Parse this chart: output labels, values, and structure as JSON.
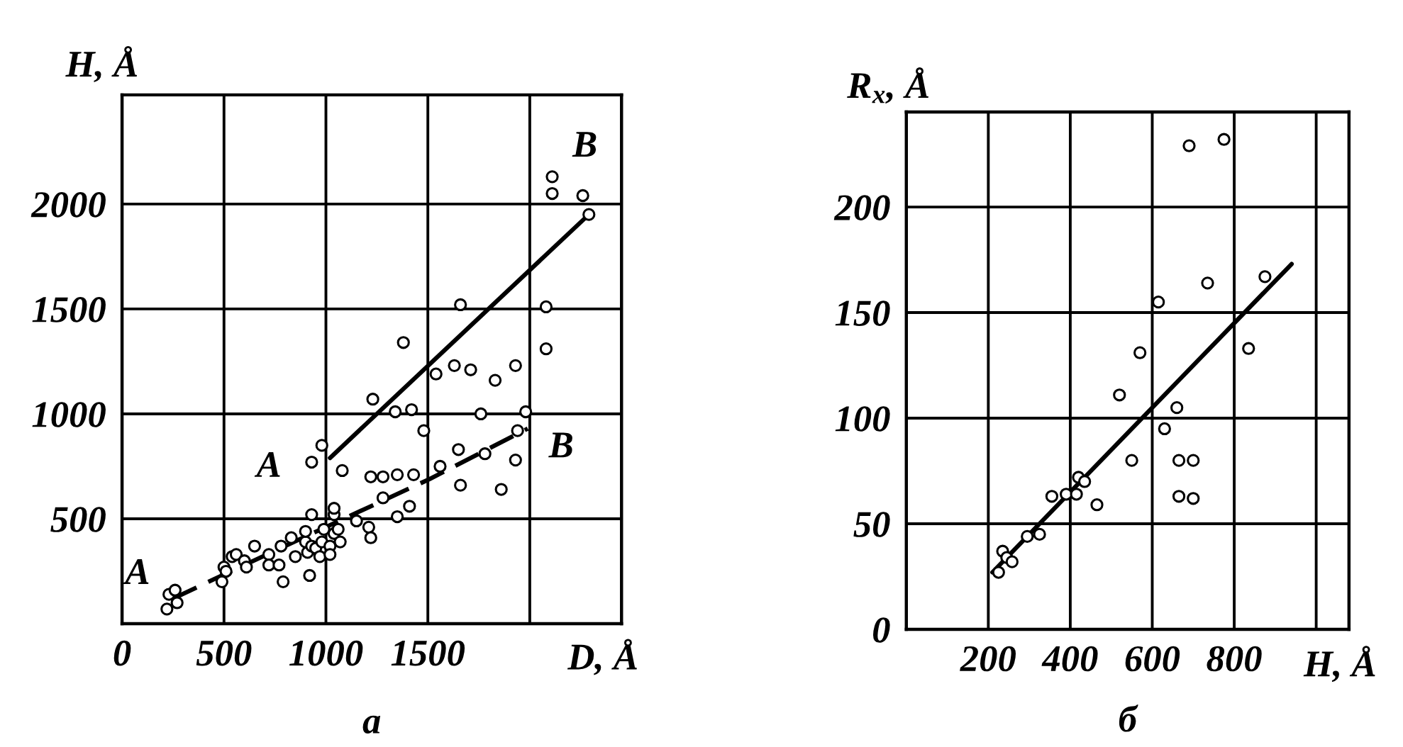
{
  "chart_data": [
    {
      "type": "scatter",
      "title": "а",
      "xlabel": "D, Å",
      "ylabel": "H, Å",
      "xlim": [
        0,
        2450
      ],
      "ylim": [
        0,
        2520
      ],
      "xticks": [
        0,
        500,
        1000,
        1500,
        {
          "value": 2000,
          "label": null
        }
      ],
      "yticks": [
        500,
        1000,
        1500,
        2000
      ],
      "grid": true,
      "series": [
        {
          "color": "#000000",
          "marker": "circle",
          "x": [
            220,
            270,
            230,
            260,
            490,
            500,
            510,
            540,
            560,
            600,
            610,
            650,
            720,
            720,
            770,
            790,
            780,
            830,
            850,
            900,
            910,
            920,
            930,
            930,
            950,
            970,
            980,
            990,
            1020,
            1020,
            1040,
            1040,
            1040,
            1060,
            1070,
            900,
            1150,
            1210,
            1220,
            1350,
            1410,
            1280,
            930,
            980,
            1080,
            1220,
            1280,
            1350,
            1430,
            1560,
            1650,
            1660,
            1780,
            1860,
            1930,
            1940,
            1480,
            1760,
            1980,
            1230,
            1340,
            1420,
            1380,
            1540,
            1630,
            1710,
            1830,
            1930,
            2080,
            1660,
            2080,
            2110,
            2110,
            2260,
            2290
          ],
          "values": [
            70,
            100,
            140,
            160,
            200,
            270,
            250,
            320,
            330,
            300,
            270,
            370,
            330,
            280,
            280,
            200,
            370,
            410,
            320,
            390,
            340,
            230,
            370,
            520,
            360,
            320,
            390,
            450,
            370,
            330,
            430,
            520,
            550,
            450,
            390,
            440,
            490,
            460,
            410,
            510,
            560,
            600,
            770,
            850,
            730,
            700,
            700,
            710,
            710,
            750,
            830,
            660,
            810,
            640,
            780,
            920,
            920,
            1000,
            1010,
            1070,
            1010,
            1020,
            1340,
            1190,
            1230,
            1210,
            1160,
            1230,
            1310,
            1520,
            1510,
            2130,
            2050,
            2040,
            1950
          ]
        },
        {
          "type": "line",
          "color": "#000000",
          "line_style": "solid",
          "x": [
            1020,
            2290
          ],
          "values": [
            790,
            1950
          ]
        },
        {
          "type": "line",
          "color": "#000000",
          "line_style": "dashed",
          "x": [
            250,
            490,
            1020,
            1510,
            1990
          ],
          "values": [
            120,
            230,
            470,
            690,
            930
          ]
        }
      ],
      "annotations": [
        {
          "text": "A",
          "x": 250,
          "y": 120
        },
        {
          "text": "B",
          "x": 2290,
          "y": 1950
        },
        {
          "text": "A",
          "x": 1020,
          "y": 790
        },
        {
          "text": "B",
          "x": 1990,
          "y": 930
        }
      ]
    },
    {
      "type": "scatter",
      "title": "б",
      "xlabel": "H, Å",
      "ylabel": "R$_{x}$, Å",
      "xlim": [
        0,
        1080
      ],
      "ylim": [
        0,
        245
      ],
      "xticks": [
        200,
        400,
        600,
        800,
        {
          "value": 1000,
          "label": null
        }
      ],
      "yticks": [
        0,
        50,
        100,
        150,
        200
      ],
      "grid": true,
      "series": [
        {
          "color": "#000000",
          "marker": "circle",
          "x": [
            225,
            235,
            245,
            258,
            295,
            325,
            355,
            390,
            415,
            420,
            435,
            465,
            520,
            550,
            570,
            615,
            630,
            660,
            665,
            700,
            665,
            700,
            735,
            835,
            875,
            690,
            775
          ],
          "values": [
            27,
            37,
            34,
            32,
            44,
            45,
            63,
            64,
            64,
            72,
            70,
            59,
            111,
            80,
            131,
            155,
            95,
            105,
            80,
            80,
            63,
            62,
            164,
            133,
            167,
            229,
            232
          ]
        },
        {
          "type": "line",
          "color": "#000000",
          "line_style": "solid",
          "x": [
            210,
            940
          ],
          "values": [
            27,
            173
          ]
        }
      ]
    }
  ]
}
